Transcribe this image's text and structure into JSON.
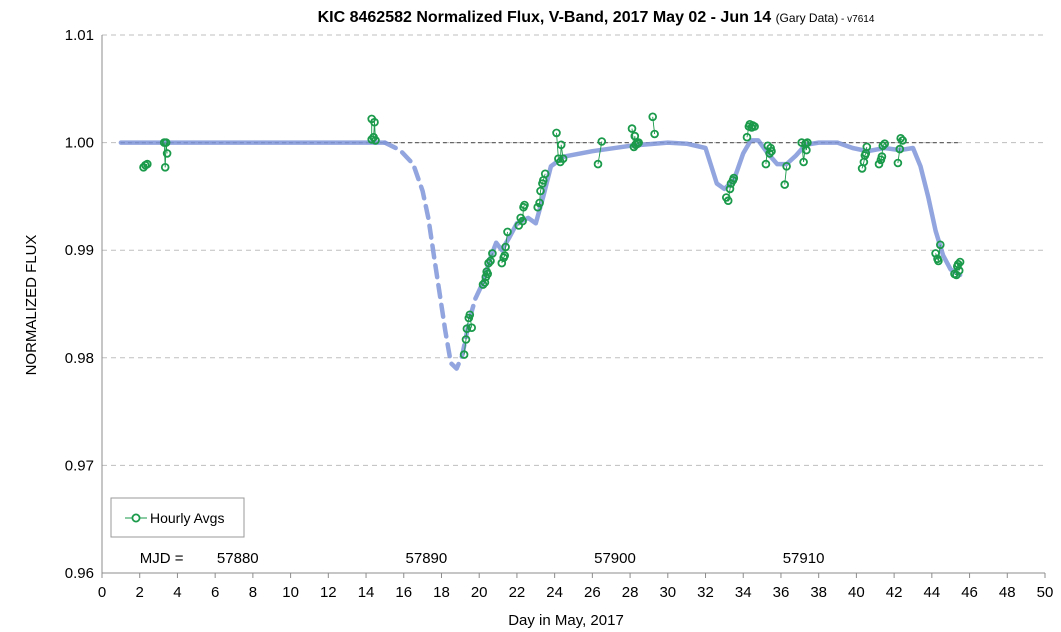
{
  "chart_data": {
    "type": "scatter",
    "title": {
      "main": "KIC 8462582 Normalized Flux, V-Band, 2017 May 02 - Jun 14 ",
      "source": "(Gary Data)",
      "version": " - v7614"
    },
    "xlabel": "Day in May, 2017",
    "ylabel": "NORMALIZED FLUX",
    "xlim": [
      0,
      50
    ],
    "ylim": [
      0.96,
      1.01
    ],
    "x_ticks": [
      0,
      2,
      4,
      6,
      8,
      10,
      12,
      14,
      16,
      18,
      20,
      22,
      24,
      26,
      28,
      30,
      32,
      34,
      36,
      38,
      40,
      42,
      44,
      46,
      48,
      50
    ],
    "y_ticks": [
      {
        "value": 0.96,
        "label": "0.96"
      },
      {
        "value": 0.97,
        "label": "0.97"
      },
      {
        "value": 0.98,
        "label": "0.98"
      },
      {
        "value": 0.99,
        "label": "0.99"
      },
      {
        "value": 1.0,
        "label": "1.00"
      },
      {
        "value": 1.01,
        "label": "1.01"
      }
    ],
    "grid": "horizontal dashed",
    "legend": {
      "position": "bottom-left",
      "entries": [
        {
          "name": "Hourly Avgs",
          "color": "#1a9a4a",
          "marker": "open-circle"
        }
      ]
    },
    "mjd_annotations": {
      "prefix": "MJD =",
      "prefix_x": 2.0,
      "items": [
        {
          "x": 7.2,
          "label": "57880"
        },
        {
          "x": 17.2,
          "label": "57890"
        },
        {
          "x": 27.2,
          "label": "57900"
        },
        {
          "x": 37.2,
          "label": "57910"
        }
      ]
    },
    "reference_line": {
      "y": 1.0,
      "x_range": [
        1.0,
        45.5
      ],
      "style": "dashed",
      "color": "#666666"
    },
    "model_curve": {
      "color": "#7f95d8",
      "segments": [
        {
          "style": "solid",
          "points": [
            [
              1.0,
              1.0
            ],
            [
              15.0,
              1.0
            ]
          ]
        },
        {
          "style": "dashed",
          "points": [
            [
              15.0,
              1.0
            ],
            [
              15.8,
              0.9993
            ],
            [
              16.5,
              0.998
            ],
            [
              17.0,
              0.9955
            ],
            [
              17.3,
              0.993
            ],
            [
              17.6,
              0.9895
            ],
            [
              17.9,
              0.986
            ],
            [
              18.2,
              0.9825
            ],
            [
              18.5,
              0.9795
            ],
            [
              18.8,
              0.979
            ],
            [
              19.1,
              0.9802
            ],
            [
              19.5,
              0.9837
            ],
            [
              19.8,
              0.9855
            ]
          ]
        },
        {
          "style": "solid",
          "points": [
            [
              19.8,
              0.9855
            ],
            [
              20.2,
              0.987
            ],
            [
              20.6,
              0.9893
            ],
            [
              20.9,
              0.9907
            ],
            [
              21.2,
              0.99
            ],
            [
              21.6,
              0.9912
            ],
            [
              22.0,
              0.9925
            ],
            [
              22.6,
              0.993
            ],
            [
              23.0,
              0.9925
            ],
            [
              23.4,
              0.995
            ],
            [
              23.8,
              0.9978
            ],
            [
              24.5,
              0.9987
            ],
            [
              26.0,
              0.9992
            ],
            [
              28.0,
              0.9997
            ],
            [
              30.0,
              1.0
            ],
            [
              31.0,
              0.9999
            ],
            [
              32.0,
              0.9995
            ],
            [
              32.6,
              0.9962
            ],
            [
              33.0,
              0.9957
            ],
            [
              33.5,
              0.9965
            ],
            [
              34.0,
              0.999
            ],
            [
              34.4,
              1.0002
            ],
            [
              34.8,
              1.0002
            ],
            [
              35.3,
              0.999
            ],
            [
              35.8,
              0.998
            ],
            [
              36.3,
              0.998
            ],
            [
              36.8,
              0.9988
            ],
            [
              37.3,
              0.9998
            ],
            [
              38.0,
              1.0
            ],
            [
              39.0,
              1.0
            ],
            [
              39.8,
              0.9995
            ],
            [
              40.6,
              0.9992
            ],
            [
              41.5,
              0.9995
            ],
            [
              42.3,
              0.9993
            ],
            [
              43.0,
              0.9995
            ],
            [
              43.4,
              0.9978
            ],
            [
              43.8,
              0.995
            ],
            [
              44.2,
              0.9918
            ],
            [
              44.6,
              0.9895
            ],
            [
              45.0,
              0.9882
            ],
            [
              45.5,
              0.9877
            ]
          ]
        }
      ]
    },
    "series": [
      {
        "name": "Hourly Avgs",
        "color": "#1a9a4a",
        "groups": [
          [
            [
              2.2,
              0.9977
            ],
            [
              2.3,
              0.9979
            ],
            [
              2.4,
              0.998
            ]
          ],
          [
            [
              3.3,
              1.0
            ],
            [
              3.35,
              0.9977
            ],
            [
              3.45,
              0.999
            ],
            [
              3.4,
              1.0
            ]
          ],
          [
            [
              14.3,
              1.0022
            ],
            [
              14.4,
              1.0005
            ],
            [
              14.5,
              1.0002
            ],
            [
              14.45,
              1.0019
            ],
            [
              14.3,
              1.0003
            ]
          ],
          [
            [
              19.2,
              0.9803
            ],
            [
              19.3,
              0.9817
            ],
            [
              19.35,
              0.9827
            ],
            [
              19.45,
              0.9837
            ],
            [
              19.5,
              0.984
            ],
            [
              19.6,
              0.9828
            ]
          ],
          [
            [
              20.2,
              0.9868
            ],
            [
              20.3,
              0.987
            ],
            [
              20.35,
              0.9875
            ],
            [
              20.4,
              0.988
            ],
            [
              20.45,
              0.9878
            ],
            [
              20.5,
              0.9888
            ],
            [
              20.6,
              0.989
            ],
            [
              20.7,
              0.9897
            ]
          ],
          [
            [
              21.2,
              0.9888
            ],
            [
              21.3,
              0.9893
            ],
            [
              21.35,
              0.9895
            ],
            [
              21.4,
              0.9903
            ],
            [
              21.5,
              0.9917
            ]
          ],
          [
            [
              22.1,
              0.9923
            ],
            [
              22.2,
              0.993
            ],
            [
              22.3,
              0.9927
            ],
            [
              22.35,
              0.994
            ],
            [
              22.4,
              0.9942
            ]
          ],
          [
            [
              23.1,
              0.994
            ],
            [
              23.2,
              0.9944
            ],
            [
              23.25,
              0.9955
            ],
            [
              23.35,
              0.9962
            ],
            [
              23.4,
              0.9965
            ],
            [
              23.5,
              0.9971
            ]
          ],
          [
            [
              24.1,
              1.0009
            ],
            [
              24.2,
              0.9985
            ],
            [
              24.3,
              0.9982
            ],
            [
              24.35,
              0.9998
            ],
            [
              24.45,
              0.9985
            ]
          ],
          [
            [
              26.3,
              0.998
            ],
            [
              26.5,
              1.0001
            ]
          ],
          [
            [
              28.1,
              1.0013
            ],
            [
              28.2,
              0.9996
            ],
            [
              28.25,
              1.0006
            ],
            [
              28.3,
              0.9998
            ],
            [
              28.4,
              0.9999
            ],
            [
              28.45,
              1.0
            ]
          ],
          [
            [
              29.2,
              1.0024
            ],
            [
              29.3,
              1.0008
            ]
          ],
          [
            [
              33.1,
              0.9949
            ],
            [
              33.2,
              0.9946
            ],
            [
              33.3,
              0.9957
            ],
            [
              33.35,
              0.9962
            ],
            [
              33.45,
              0.9965
            ],
            [
              33.5,
              0.9967
            ]
          ],
          [
            [
              34.2,
              1.0005
            ],
            [
              34.3,
              1.0015
            ],
            [
              34.35,
              1.0017
            ],
            [
              34.45,
              1.0014
            ],
            [
              34.5,
              1.0016
            ],
            [
              34.6,
              1.0015
            ]
          ],
          [
            [
              35.2,
              0.998
            ],
            [
              35.3,
              0.9997
            ],
            [
              35.4,
              0.999
            ],
            [
              35.45,
              0.9995
            ],
            [
              35.5,
              0.9992
            ]
          ],
          [
            [
              36.2,
              0.9961
            ],
            [
              36.3,
              0.9978
            ]
          ],
          [
            [
              37.1,
              1.0
            ],
            [
              37.2,
              0.9982
            ],
            [
              37.3,
              0.9999
            ],
            [
              37.35,
              0.9993
            ],
            [
              37.4,
              1.0
            ]
          ],
          [
            [
              40.3,
              0.9976
            ],
            [
              40.4,
              0.9982
            ],
            [
              40.45,
              0.9988
            ],
            [
              40.5,
              0.999
            ],
            [
              40.55,
              0.9996
            ]
          ],
          [
            [
              41.2,
              0.998
            ],
            [
              41.3,
              0.9984
            ],
            [
              41.35,
              0.9987
            ],
            [
              41.4,
              0.9997
            ],
            [
              41.5,
              0.9999
            ]
          ],
          [
            [
              42.2,
              0.9981
            ],
            [
              42.3,
              0.9994
            ],
            [
              42.35,
              1.0004
            ],
            [
              42.45,
              1.0002
            ]
          ],
          [
            [
              44.2,
              0.9897
            ],
            [
              44.3,
              0.9892
            ],
            [
              44.35,
              0.989
            ],
            [
              44.45,
              0.9905
            ]
          ],
          [
            [
              45.2,
              0.9878
            ],
            [
              45.3,
              0.9877
            ],
            [
              45.35,
              0.9885
            ],
            [
              45.4,
              0.9887
            ],
            [
              45.5,
              0.9889
            ],
            [
              45.45,
              0.9881
            ]
          ]
        ]
      }
    ]
  }
}
